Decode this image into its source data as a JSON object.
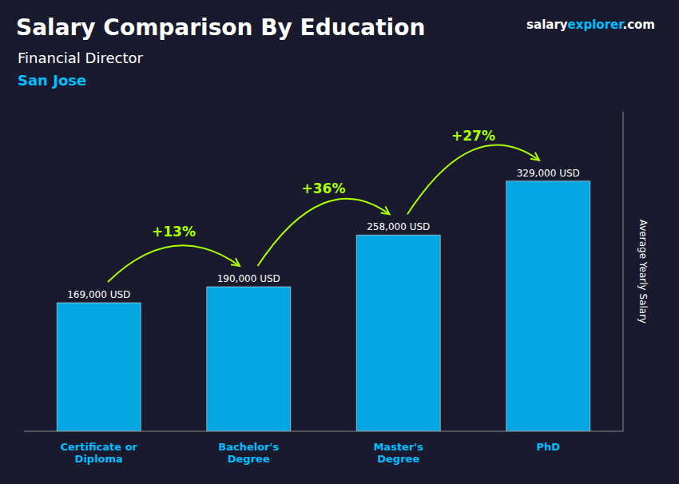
{
  "chart_data": {
    "type": "bar",
    "title": "Salary Comparison By Education",
    "subtitle": "Financial Director",
    "location": {
      "text": "San Jose",
      "color": "#00BFFF"
    },
    "brand": [
      {
        "text": "salary",
        "color": "#FFFFFF"
      },
      {
        "text": "explorer",
        "color": "#00BFFF"
      },
      {
        "text": ".com",
        "color": "#FFFFFF"
      }
    ],
    "ylabel": "Average Yearly Salary",
    "categories": [
      "Certificate or\nDiploma",
      "Bachelor's\nDegree",
      "Master's\nDegree",
      "PhD"
    ],
    "values": [
      169000,
      190000,
      258000,
      329000
    ],
    "value_labels": [
      "169,000 USD",
      "190,000 USD",
      "258,000 USD",
      "329,000 USD"
    ],
    "data_labels": true,
    "color": "#00BFFF",
    "annotations": [
      {
        "text": "+13%",
        "color": "#AAFF00"
      },
      {
        "text": "+36%",
        "color": "#AAFF00"
      },
      {
        "text": "+27%",
        "color": "#AAFF00"
      }
    ],
    "ylim": [
      0,
      420000
    ],
    "grid": false,
    "tick_labels": "x"
  }
}
